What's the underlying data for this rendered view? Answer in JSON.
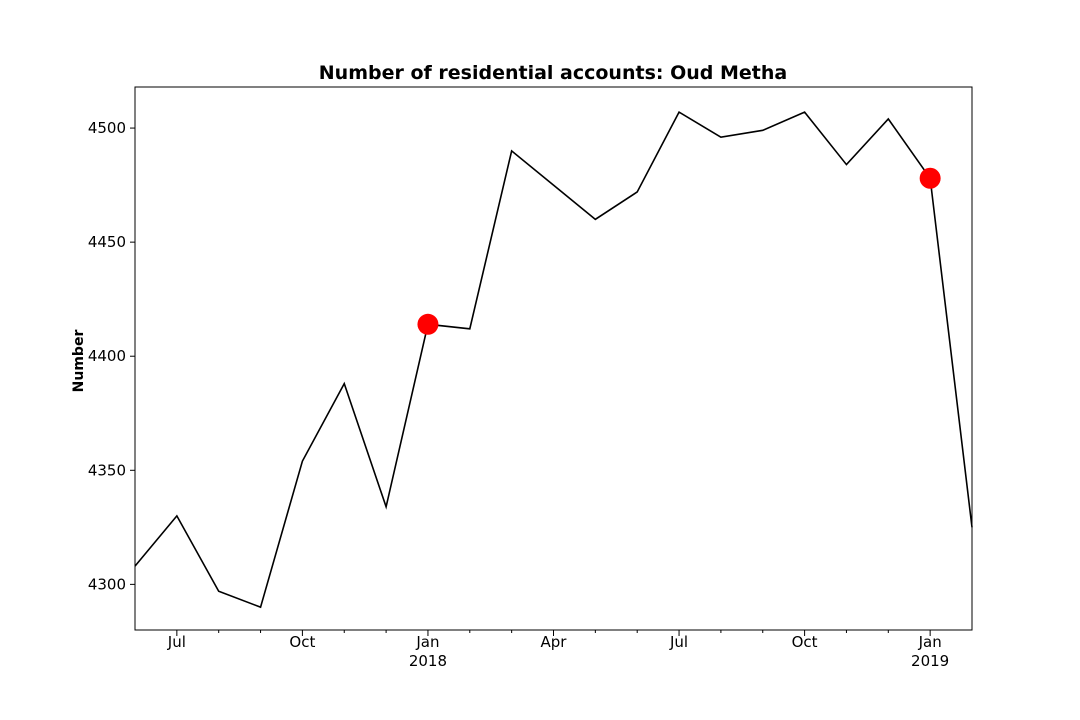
{
  "chart_data": {
    "type": "line",
    "title": "Number of residential accounts: Oud Metha",
    "xlabel": "",
    "ylabel": "Number",
    "x": [
      "2017-06",
      "2017-07",
      "2017-08",
      "2017-09",
      "2017-10",
      "2017-11",
      "2017-12",
      "2018-01",
      "2018-02",
      "2018-03",
      "2018-04",
      "2018-05",
      "2018-06",
      "2018-07",
      "2018-08",
      "2018-09",
      "2018-10",
      "2018-11",
      "2018-12",
      "2019-01",
      "2019-02"
    ],
    "series": [
      {
        "values": [
          4308,
          4330,
          4297,
          4290,
          4354,
          4388,
          4334,
          4414,
          4412,
          4490,
          4475,
          4460,
          4472,
          4507,
          4496,
          4499,
          4507,
          4484,
          4504,
          4478,
          4325
        ],
        "color": "#000000"
      }
    ],
    "highlight_points": [
      {
        "x": "2018-01",
        "y": 4414
      },
      {
        "x": "2019-01",
        "y": 4478
      }
    ],
    "highlight_color": "#ff0000",
    "xlim": [
      "2017-06",
      "2019-02"
    ],
    "ylim": [
      4280,
      4518
    ],
    "y_ticks": [
      4300,
      4350,
      4400,
      4450,
      4500
    ],
    "x_ticks": [
      {
        "x": "2017-07",
        "label": "Jul",
        "sublabel": ""
      },
      {
        "x": "2017-10",
        "label": "Oct",
        "sublabel": ""
      },
      {
        "x": "2018-01",
        "label": "Jan",
        "sublabel": "2018"
      },
      {
        "x": "2018-04",
        "label": "Apr",
        "sublabel": ""
      },
      {
        "x": "2018-07",
        "label": "Jul",
        "sublabel": ""
      },
      {
        "x": "2018-10",
        "label": "Oct",
        "sublabel": ""
      },
      {
        "x": "2019-01",
        "label": "Jan",
        "sublabel": "2019"
      }
    ],
    "x_minor_ticks": [
      "2017-08",
      "2017-09",
      "2017-11",
      "2017-12",
      "2018-02",
      "2018-03",
      "2018-05",
      "2018-06",
      "2018-08",
      "2018-09",
      "2018-11",
      "2018-12"
    ],
    "grid": false,
    "legend": "none"
  }
}
